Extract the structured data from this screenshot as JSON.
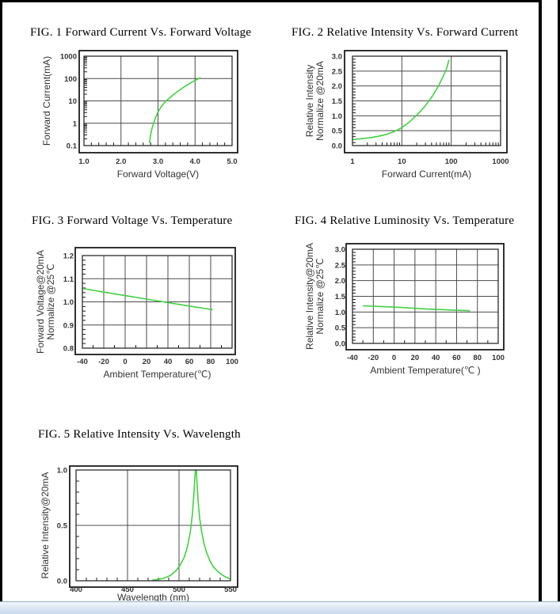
{
  "colors": {
    "curve": "#42d142",
    "grid": "#4b4b4b",
    "frame": "#1c1c1c",
    "tick_text": "#333333",
    "scrollbar_top": "#f3f7fc",
    "scrollbar_bottom": "#c8d9ec",
    "scrollbar_border": "#93abc9"
  },
  "chart_data": [
    {
      "id": "fig1",
      "type": "line",
      "title": "FIG. 1 Forward Current Vs. Forward Voltage",
      "xlabel": "Forward Voltage(V)",
      "ylabel_lines": [
        "Forward Current(mA)"
      ],
      "x_scale": "linear",
      "x_range": [
        1.0,
        5.0
      ],
      "y_scale": "log",
      "y_range": [
        0.1,
        1000
      ],
      "x_ticks": [
        {
          "v": 1,
          "t": "1.0"
        },
        {
          "v": 2,
          "t": "2.0"
        },
        {
          "v": 3,
          "t": "3.0"
        },
        {
          "v": 4,
          "t": "4.0"
        },
        {
          "v": 5,
          "t": "5.0"
        }
      ],
      "y_ticks": [
        {
          "v": 1000,
          "t": "1000"
        },
        {
          "v": 100,
          "t": "100"
        },
        {
          "v": 10,
          "t": "10"
        },
        {
          "v": 1,
          "t": "1"
        },
        {
          "v": 0.1,
          "t": "0.1"
        }
      ],
      "x_grid": [
        2,
        3,
        4
      ],
      "y_grid": [
        1,
        10,
        100
      ],
      "x_minor_step": 0.2,
      "y_minor": "log",
      "points": [
        [
          2.77,
          0.13
        ],
        [
          2.8,
          0.3
        ],
        [
          2.84,
          0.6
        ],
        [
          2.88,
          1.0
        ],
        [
          2.94,
          1.9
        ],
        [
          3.0,
          3.2
        ],
        [
          3.1,
          6.0
        ],
        [
          3.22,
          10
        ],
        [
          3.38,
          17
        ],
        [
          3.55,
          28
        ],
        [
          3.75,
          48
        ],
        [
          3.95,
          75
        ],
        [
          4.15,
          110
        ]
      ]
    },
    {
      "id": "fig2",
      "type": "line",
      "title": "FIG. 2 Relative Intensity Vs. Forward Current",
      "xlabel": "Forward Current(mA)",
      "ylabel_lines": [
        "Relative Intensity",
        "Normalize @20mA"
      ],
      "x_scale": "log",
      "x_range": [
        1,
        1000
      ],
      "y_scale": "linear",
      "y_range": [
        0.0,
        3.0
      ],
      "x_ticks": [
        {
          "v": 1,
          "t": "1"
        },
        {
          "v": 10,
          "t": "10"
        },
        {
          "v": 100,
          "t": "100"
        },
        {
          "v": 1000,
          "t": "1000"
        }
      ],
      "y_ticks": [
        {
          "v": 3.0,
          "t": "3.0"
        },
        {
          "v": 2.5,
          "t": "2.5"
        },
        {
          "v": 2.0,
          "t": "2.0"
        },
        {
          "v": 1.5,
          "t": "1.5"
        },
        {
          "v": 1.0,
          "t": "1.0"
        },
        {
          "v": 0.5,
          "t": "0.5"
        },
        {
          "v": 0.0,
          "t": "0.0"
        }
      ],
      "x_grid": [
        10,
        100
      ],
      "y_grid": [
        0.5,
        1.0,
        1.5,
        2.0,
        2.5
      ],
      "x_minor": "log",
      "y_minor_step": 0.1,
      "points": [
        [
          1,
          0.2
        ],
        [
          1.5,
          0.23
        ],
        [
          2.2,
          0.26
        ],
        [
          3.3,
          0.31
        ],
        [
          5,
          0.38
        ],
        [
          7,
          0.47
        ],
        [
          10,
          0.6
        ],
        [
          14,
          0.78
        ],
        [
          20,
          1.02
        ],
        [
          28,
          1.28
        ],
        [
          40,
          1.62
        ],
        [
          55,
          2.0
        ],
        [
          70,
          2.35
        ],
        [
          82,
          2.62
        ],
        [
          90,
          2.88
        ]
      ]
    },
    {
      "id": "fig3",
      "type": "line",
      "title": "FIG. 3 Forward Voltage Vs. Temperature",
      "xlabel": "Ambient Temperature(℃)",
      "ylabel_lines": [
        "Forward Voltage@20mA",
        "Normalize @25℃"
      ],
      "x_scale": "linear",
      "x_range": [
        -40,
        100
      ],
      "y_scale": "linear",
      "y_range": [
        0.8,
        1.2
      ],
      "x_ticks": [
        {
          "v": -40,
          "t": "-40"
        },
        {
          "v": -20,
          "t": "-20"
        },
        {
          "v": 0,
          "t": "0"
        },
        {
          "v": 20,
          "t": "20"
        },
        {
          "v": 40,
          "t": "40"
        },
        {
          "v": 60,
          "t": "60"
        },
        {
          "v": 80,
          "t": "80"
        },
        {
          "v": 100,
          "t": "100"
        }
      ],
      "y_ticks": [
        {
          "v": 1.2,
          "t": "1.2"
        },
        {
          "v": 1.1,
          "t": "1.1"
        },
        {
          "v": 1.0,
          "t": "1.0"
        },
        {
          "v": 0.9,
          "t": "0.9"
        },
        {
          "v": 0.8,
          "t": "0.8"
        }
      ],
      "x_grid": [
        -20,
        0,
        20,
        40,
        60,
        80
      ],
      "y_grid": [
        0.9,
        1.0,
        1.1
      ],
      "x_minor_step": 10,
      "y_minor_step": 0.02,
      "points": [
        [
          -40,
          1.058
        ],
        [
          -20,
          1.042
        ],
        [
          0,
          1.027
        ],
        [
          20,
          1.012
        ],
        [
          40,
          0.997
        ],
        [
          60,
          0.982
        ],
        [
          82,
          0.966
        ]
      ]
    },
    {
      "id": "fig4",
      "type": "line",
      "title": "FIG. 4 Relative Luminosity Vs. Temperature",
      "xlabel": "Ambient Temperature(℃ )",
      "ylabel_lines": [
        "Relative Intensity@20mA",
        "Normalize @25℃"
      ],
      "x_scale": "linear",
      "x_range": [
        -40,
        100
      ],
      "y_scale": "linear",
      "y_range": [
        0.0,
        3.0
      ],
      "x_ticks": [
        {
          "v": -40,
          "t": "-40"
        },
        {
          "v": -20,
          "t": "-20"
        },
        {
          "v": 0,
          "t": "0"
        },
        {
          "v": 20,
          "t": "20"
        },
        {
          "v": 40,
          "t": "40"
        },
        {
          "v": 60,
          "t": "60"
        },
        {
          "v": 80,
          "t": "80"
        },
        {
          "v": 100,
          "t": "100"
        }
      ],
      "y_ticks": [
        {
          "v": 3.0,
          "t": "3.0"
        },
        {
          "v": 2.5,
          "t": "2.5"
        },
        {
          "v": 2.0,
          "t": "2.0"
        },
        {
          "v": 1.5,
          "t": "1.5"
        },
        {
          "v": 1.0,
          "t": "1.0"
        },
        {
          "v": 0.5,
          "t": "0.5"
        },
        {
          "v": 0.0,
          "t": "0.0"
        }
      ],
      "x_grid": [
        -20,
        0,
        20,
        40,
        60,
        80
      ],
      "y_grid": [
        0.5,
        1.0,
        1.5,
        2.0,
        2.5
      ],
      "x_minor_step": 10,
      "y_minor_step": 0.1,
      "points": [
        [
          -30,
          1.2
        ],
        [
          -10,
          1.17
        ],
        [
          10,
          1.14
        ],
        [
          30,
          1.1
        ],
        [
          50,
          1.07
        ],
        [
          73,
          1.04
        ]
      ]
    },
    {
      "id": "fig5",
      "type": "line",
      "title": "FIG. 5 Relative Intensity Vs. Wavelength",
      "xlabel": "Wavelength (nm)",
      "ylabel_lines": [
        "Relative Intensity@20mA"
      ],
      "x_scale": "linear",
      "x_range": [
        400,
        550
      ],
      "y_scale": "linear",
      "y_range": [
        0.0,
        1.0
      ],
      "x_ticks": [
        {
          "v": 400,
          "t": "400"
        },
        {
          "v": 450,
          "t": "450"
        },
        {
          "v": 500,
          "t": "500"
        },
        {
          "v": 550,
          "t": "550"
        }
      ],
      "y_ticks": [
        {
          "v": 1.0,
          "t": "1.0"
        },
        {
          "v": 0.5,
          "t": "0.5"
        },
        {
          "v": 0.0,
          "t": "0.0"
        }
      ],
      "x_grid": [
        450,
        500
      ],
      "y_grid": [
        0.5
      ],
      "x_minor_step": 10,
      "y_minor_step": 0.1,
      "points": [
        [
          474,
          0.005
        ],
        [
          480,
          0.012
        ],
        [
          486,
          0.025
        ],
        [
          492,
          0.05
        ],
        [
          497,
          0.09
        ],
        [
          501,
          0.14
        ],
        [
          505,
          0.21
        ],
        [
          508,
          0.3
        ],
        [
          511,
          0.44
        ],
        [
          513,
          0.6
        ],
        [
          514.5,
          0.78
        ],
        [
          515.5,
          0.95
        ],
        [
          516,
          1.0
        ],
        [
          516.8,
          1.0
        ],
        [
          517.5,
          0.88
        ],
        [
          518.5,
          0.72
        ],
        [
          520,
          0.57
        ],
        [
          522,
          0.44
        ],
        [
          524.5,
          0.33
        ],
        [
          527,
          0.25
        ],
        [
          530,
          0.18
        ],
        [
          533,
          0.13
        ],
        [
          537,
          0.09
        ],
        [
          541,
          0.06
        ],
        [
          545,
          0.035
        ],
        [
          550,
          0.015
        ]
      ]
    }
  ]
}
